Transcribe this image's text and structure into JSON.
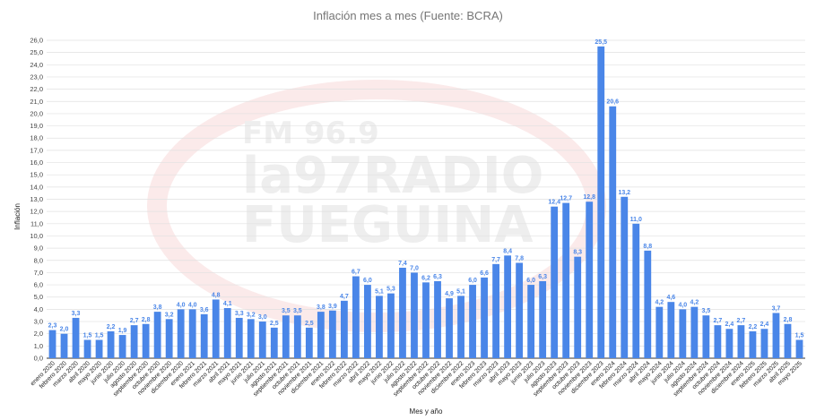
{
  "chart_data": {
    "type": "bar",
    "title": "Inflación mes a mes (Fuente: BCRA)",
    "xlabel": "Mes y año",
    "ylabel": "Inflación",
    "ylim": [
      0,
      26
    ],
    "ytick_step": 1,
    "grid": true,
    "bar_color": "#4a86e8",
    "label_color": "#4a86e8",
    "categories": [
      "enero 2020",
      "febrero 2020",
      "marzo 2020",
      "abril 2020",
      "mayo 2020",
      "junio 2020",
      "julio 2020",
      "agosto 2020",
      "septiembre 2020",
      "octubre 2020",
      "noviembre 2020",
      "diciembre 2020",
      "enero 2021",
      "febrero 2021",
      "marzo 2021",
      "abril 2021",
      "mayo 2021",
      "junio 2021",
      "julio 2021",
      "agosto 2021",
      "septiembre 2021",
      "octubre 2021",
      "noviembre 2021",
      "diciembre 2021",
      "enero 2022",
      "febrero 2022",
      "marzo 2022",
      "abril 2022",
      "mayo 2022",
      "junio 2022",
      "julio 2022",
      "agosto 2022",
      "septiembre 2022",
      "octubre 2022",
      "noviembre 2022",
      "diciembre 2022",
      "enero 2023",
      "febrero 2023",
      "marzo 2023",
      "abril 2023",
      "mayo 2023",
      "junio 2023",
      "julio 2023",
      "agosto 2023",
      "septiembre 2023",
      "octubre 2023",
      "noviembre 2023",
      "diciembre 2023",
      "enero 2024",
      "febrero 2024",
      "marzo 2024",
      "abril 2024",
      "mayo 2024",
      "junio 2024",
      "julio 2024",
      "agosto 2024",
      "septiembre 2024",
      "octubre 2024",
      "noviembre 2024",
      "diciembre 2024",
      "enero 2025",
      "febrero 2025",
      "marzo 2025",
      "abril 2025",
      "mayo 2025"
    ],
    "values": [
      2.3,
      2.0,
      3.3,
      1.5,
      1.5,
      2.2,
      1.9,
      2.7,
      2.8,
      3.8,
      3.2,
      4.0,
      4.0,
      3.6,
      4.8,
      4.1,
      3.3,
      3.2,
      3.0,
      2.5,
      3.5,
      3.5,
      2.5,
      3.8,
      3.9,
      4.7,
      6.7,
      6.0,
      5.1,
      5.3,
      7.4,
      7.0,
      6.2,
      6.3,
      4.9,
      5.1,
      6.0,
      6.6,
      7.7,
      8.4,
      7.8,
      6.0,
      6.3,
      12.4,
      12.7,
      8.3,
      12.8,
      25.5,
      20.6,
      13.2,
      11.0,
      8.8,
      4.2,
      4.6,
      4.0,
      4.2,
      3.5,
      2.7,
      2.4,
      2.7,
      2.2,
      2.4,
      3.7,
      2.8,
      1.5
    ],
    "data_labels": [
      "2,3",
      "2,0",
      "3,3",
      "1,5",
      "1,5",
      "2,2",
      "1,9",
      "2,7",
      "2,8",
      "3,8",
      "3,2",
      "4,0",
      "4,0",
      "3,6",
      "4,8",
      "4,1",
      "3,3",
      "3,2",
      "3,0",
      "2,5",
      "3,5",
      "3,5",
      "2,5",
      "3,8",
      "3,9",
      "4,7",
      "6,7",
      "6,0",
      "5,1",
      "5,3",
      "7,4",
      "7,0",
      "6,2",
      "6,3",
      "4,9",
      "5,1",
      "6,0",
      "6,6",
      "7,7",
      "8,4",
      "7,8",
      "6,0",
      "6,3",
      "12,4",
      "12,7",
      "8,3",
      "12,8",
      "25,5",
      "20,6",
      "13,2",
      "11,0",
      "8,8",
      "4,2",
      "4,6",
      "4,0",
      "4,2",
      "3,5",
      "2,7",
      "2,4",
      "2,7",
      "2,2",
      "2,4",
      "3,7",
      "2,8",
      "1,5"
    ],
    "yticks": [
      "0,0",
      "1,0",
      "2,0",
      "3,0",
      "4,0",
      "5,0",
      "6,0",
      "7,0",
      "8,0",
      "9,0",
      "10,0",
      "11,0",
      "12,0",
      "13,0",
      "14,0",
      "15,0",
      "16,0",
      "17,0",
      "18,0",
      "19,0",
      "20,0",
      "21,0",
      "22,0",
      "23,0",
      "24,0",
      "25,0",
      "26,0"
    ]
  },
  "watermark": {
    "line1": "FM 96.9",
    "line2": "la97RADIO",
    "line3": "FUEGUINA",
    "color": "#eeeeee",
    "ring_color": "#fbe9e9"
  }
}
